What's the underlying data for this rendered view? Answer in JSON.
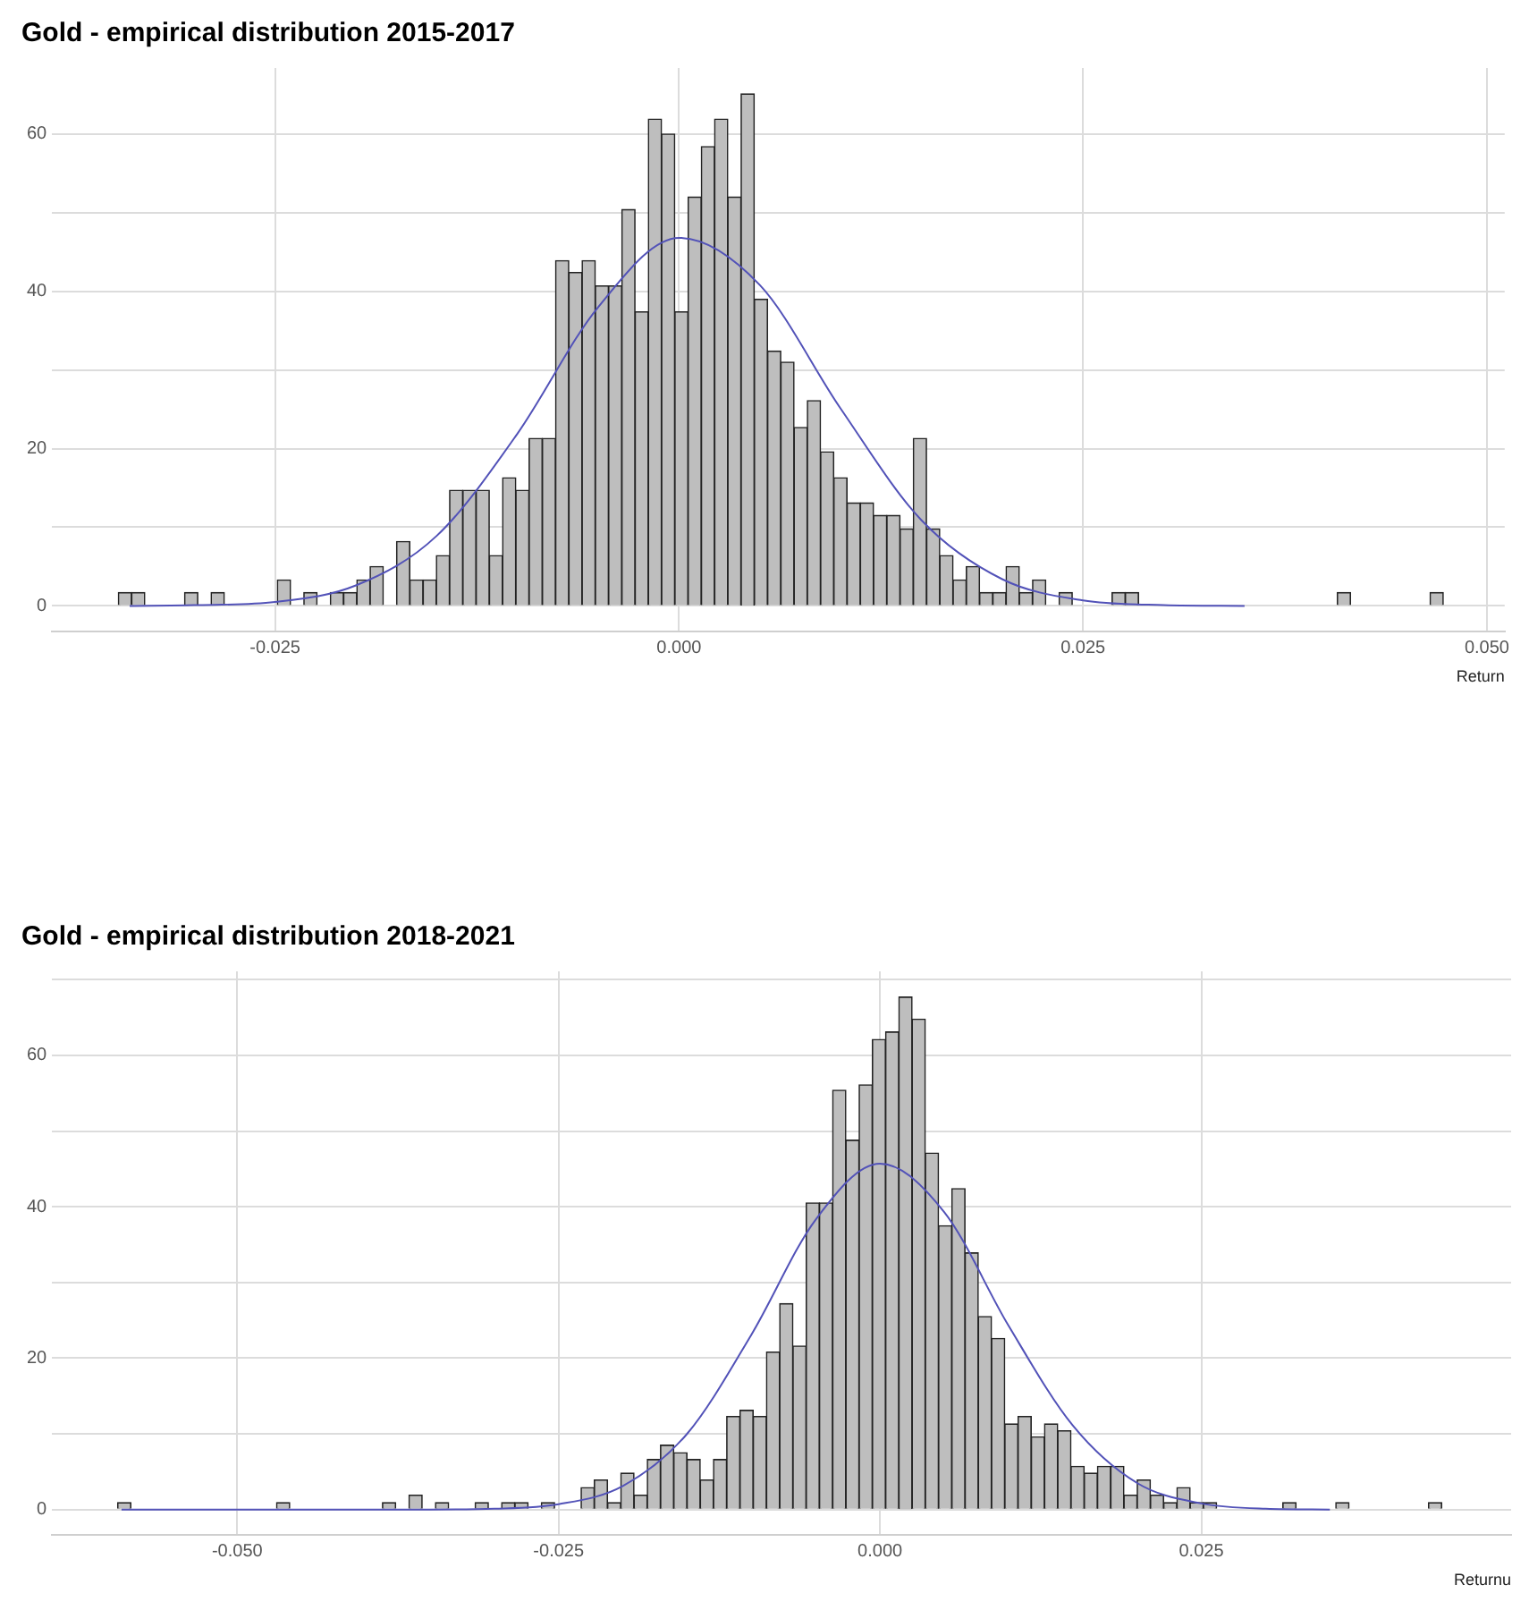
{
  "chart_data": [
    {
      "type": "histogram",
      "title": "Gold - empirical distribution 2015-2017",
      "xlabel": "Return",
      "grid": true,
      "xlim": [
        -0.0388,
        0.0511
      ],
      "ylim": [
        -3.3,
        68.4
      ],
      "xticks": [
        {
          "value": -0.025,
          "label": "-0.025"
        },
        {
          "value": 0,
          "label": "0.000"
        },
        {
          "value": 0.025,
          "label": "0.025"
        },
        {
          "value": 0.05,
          "label": "0.050"
        }
      ],
      "yticks": [
        0,
        {
          "value": 10,
          "label": null
        },
        20,
        {
          "value": 30,
          "label": null
        },
        40,
        {
          "value": 50,
          "label": null
        },
        60
      ],
      "bins": [
        -0.0347,
        -0.03388,
        -0.03306,
        -0.03224,
        -0.03142,
        -0.0306,
        -0.02978,
        -0.02896,
        -0.02814,
        -0.02732,
        -0.0265,
        -0.02568,
        -0.02486,
        -0.02404,
        -0.02322,
        -0.0224,
        -0.02158,
        -0.02076,
        -0.01994,
        -0.01912,
        -0.0183,
        -0.01748,
        -0.01666,
        -0.01584,
        -0.01502,
        -0.0142,
        -0.01338,
        -0.01256,
        -0.01174,
        -0.01092,
        -0.0101,
        -0.00928,
        -0.00846,
        -0.00764,
        -0.00682,
        -0.006,
        -0.00518,
        -0.00436,
        -0.00354,
        -0.00272,
        -0.0019,
        -0.00108,
        -0.00026,
        0.00056,
        0.00138,
        0.0022,
        0.00302,
        0.00384,
        0.00466,
        0.00548,
        0.0063,
        0.00712,
        0.00794,
        0.00876,
        0.00958,
        0.0104,
        0.01122,
        0.01204,
        0.01286,
        0.01368,
        0.0145,
        0.01532,
        0.01614,
        0.01696,
        0.01778,
        0.0186,
        0.01942,
        0.02024,
        0.02106,
        0.02188,
        0.0227,
        0.02352,
        0.02434,
        0.02516,
        0.02598,
        0.0268,
        0.02762,
        0.02844,
        0.02926,
        0.03008,
        0.0309,
        0.03172,
        0.03254,
        0.03336,
        0.03418,
        0.035,
        0.03582,
        0.03664,
        0.03746,
        0.03828,
        0.0391,
        0.03992,
        0.04074,
        0.04156,
        0.04238,
        0.0432,
        0.04402,
        0.04484,
        0.04566,
        0.04648,
        0.0473
      ],
      "series": [
        {
          "color": "#bebebe",
          "values": [
            1.7,
            1.7,
            0,
            0,
            0,
            1.7,
            0,
            1.7,
            0,
            0,
            0,
            0,
            3.3,
            0,
            1.7,
            0,
            1.7,
            1.7,
            3.3,
            5.0,
            0,
            8.2,
            3.3,
            3.3,
            6.4,
            14.7,
            14.7,
            14.7,
            6.4,
            16.3,
            14.7,
            21.3,
            21.3,
            43.9,
            42.4,
            43.9,
            40.7,
            40.7,
            50.4,
            37.4,
            61.9,
            60,
            37.4,
            52,
            58.4,
            61.9,
            52,
            65.1,
            39,
            32.4,
            31,
            22.7,
            26.1,
            19.6,
            16.3,
            13.1,
            13.1,
            11.5,
            11.5,
            9.8,
            21.3,
            9.8,
            6.4,
            3.3,
            5.0,
            1.7,
            1.7,
            5.0,
            1.7,
            3.3,
            0,
            1.7,
            0,
            0,
            0,
            1.7,
            1.7,
            0,
            0,
            0,
            0,
            0,
            0,
            0,
            0,
            0,
            0,
            0,
            0,
            0,
            0,
            0,
            1.7,
            0,
            0,
            0,
            0,
            0,
            0,
            1.7
          ]
        },
        {
          "type": "line",
          "color": "#5252b8",
          "x": [
            -0.034,
            -0.03,
            -0.025,
            -0.02,
            -0.015,
            -0.01,
            -0.005,
            0,
            0.005,
            0.01,
            0.015,
            0.02,
            0.025,
            0.03,
            0.035
          ],
          "values": [
            0,
            0.1,
            0.5,
            2.6,
            8.9,
            21.9,
            38.0,
            46.8,
            40.8,
            25.1,
            10.9,
            3.4,
            0.7,
            0.1,
            0
          ]
        }
      ]
    },
    {
      "type": "histogram",
      "title": "Gold - empirical distribution 2018-2021",
      "xlabel": "Returnu",
      "grid": true,
      "xlim": [
        -0.0644,
        0.0491
      ],
      "ylim": [
        -3.4,
        71.1
      ],
      "xticks": [
        {
          "value": -0.05,
          "label": "-0.050"
        },
        {
          "value": -0.025,
          "label": "-0.025"
        },
        {
          "value": 0,
          "label": "0.000"
        },
        {
          "value": 0.025,
          "label": "0.025"
        }
      ],
      "yticks": [
        0,
        {
          "value": 10,
          "label": null
        },
        20,
        {
          "value": 30,
          "label": null
        },
        40,
        {
          "value": 50,
          "label": null
        },
        60,
        {
          "value": 70,
          "label": null
        }
      ],
      "bins": [
        -0.0593,
        -0.05827,
        -0.05724,
        -0.05621,
        -0.05518,
        -0.05415,
        -0.05312,
        -0.05209,
        -0.05106,
        -0.05003,
        -0.049,
        -0.04797,
        -0.04694,
        -0.04591,
        -0.04488,
        -0.04385,
        -0.04282,
        -0.04179,
        -0.04076,
        -0.03973,
        -0.0387,
        -0.03767,
        -0.03664,
        -0.03561,
        -0.03458,
        -0.03355,
        -0.03252,
        -0.03149,
        -0.03046,
        -0.02943,
        -0.0284,
        -0.02737,
        -0.02634,
        -0.02531,
        -0.02428,
        -0.02325,
        -0.02222,
        -0.02119,
        -0.02016,
        -0.01913,
        -0.0181,
        -0.01707,
        -0.01604,
        -0.01501,
        -0.01398,
        -0.01295,
        -0.01192,
        -0.01089,
        -0.00986,
        -0.00883,
        -0.0078,
        -0.00677,
        -0.00574,
        -0.00471,
        -0.00368,
        -0.00265,
        -0.00162,
        -0.00059,
        0.00044,
        0.00147,
        0.0025,
        0.00353,
        0.00456,
        0.00559,
        0.00662,
        0.00765,
        0.00868,
        0.00971,
        0.01074,
        0.01177,
        0.0128,
        0.01383,
        0.01486,
        0.01589,
        0.01692,
        0.01795,
        0.01898,
        0.02001,
        0.02104,
        0.02207,
        0.0231,
        0.02413,
        0.02516,
        0.02619,
        0.02722,
        0.02825,
        0.02928,
        0.03031,
        0.03134,
        0.03237,
        0.0334,
        0.03443,
        0.03546,
        0.03649,
        0.03752,
        0.03855,
        0.03958,
        0.04061,
        0.04164,
        0.04267,
        0.0437
      ],
      "series": [
        {
          "color": "#bebebe",
          "values": [
            0.9,
            0,
            0,
            0,
            0,
            0,
            0,
            0,
            0,
            0,
            0,
            0,
            0.9,
            0,
            0,
            0,
            0,
            0,
            0,
            0,
            0.9,
            0,
            1.9,
            0,
            0.9,
            0,
            0,
            0.9,
            0,
            0.9,
            0.9,
            0,
            0.9,
            0,
            0,
            2.9,
            3.9,
            0.9,
            4.8,
            1.9,
            6.6,
            8.5,
            7.5,
            6.6,
            3.9,
            6.6,
            12.3,
            13.1,
            12.3,
            20.8,
            27.2,
            21.6,
            40.5,
            40.5,
            55.4,
            48.8,
            56.1,
            62.1,
            63.1,
            67.7,
            64.8,
            47.1,
            37.5,
            42.4,
            33.9,
            25.5,
            22.6,
            11.3,
            12.3,
            9.6,
            11.3,
            10.4,
            5.7,
            4.8,
            5.7,
            5.7,
            1.9,
            3.9,
            1.9,
            0.9,
            2.9,
            0.9,
            0.9,
            0,
            0,
            0,
            0,
            0,
            0.9,
            0,
            0,
            0,
            0.9,
            0,
            0,
            0,
            0,
            0,
            0,
            0.9
          ]
        },
        {
          "type": "line",
          "color": "#5252b8",
          "x": [
            -0.059,
            -0.045,
            -0.035,
            -0.03,
            -0.025,
            -0.02,
            -0.015,
            -0.01,
            -0.005,
            0,
            0.005,
            0.01,
            0.015,
            0.02,
            0.025,
            0.03,
            0.035
          ],
          "values": [
            0,
            0,
            0,
            0.1,
            0.7,
            3.1,
            10.0,
            23.1,
            38.3,
            45.7,
            39.3,
            24.3,
            11.1,
            3.5,
            0.8,
            0.1,
            0
          ]
        }
      ]
    }
  ]
}
